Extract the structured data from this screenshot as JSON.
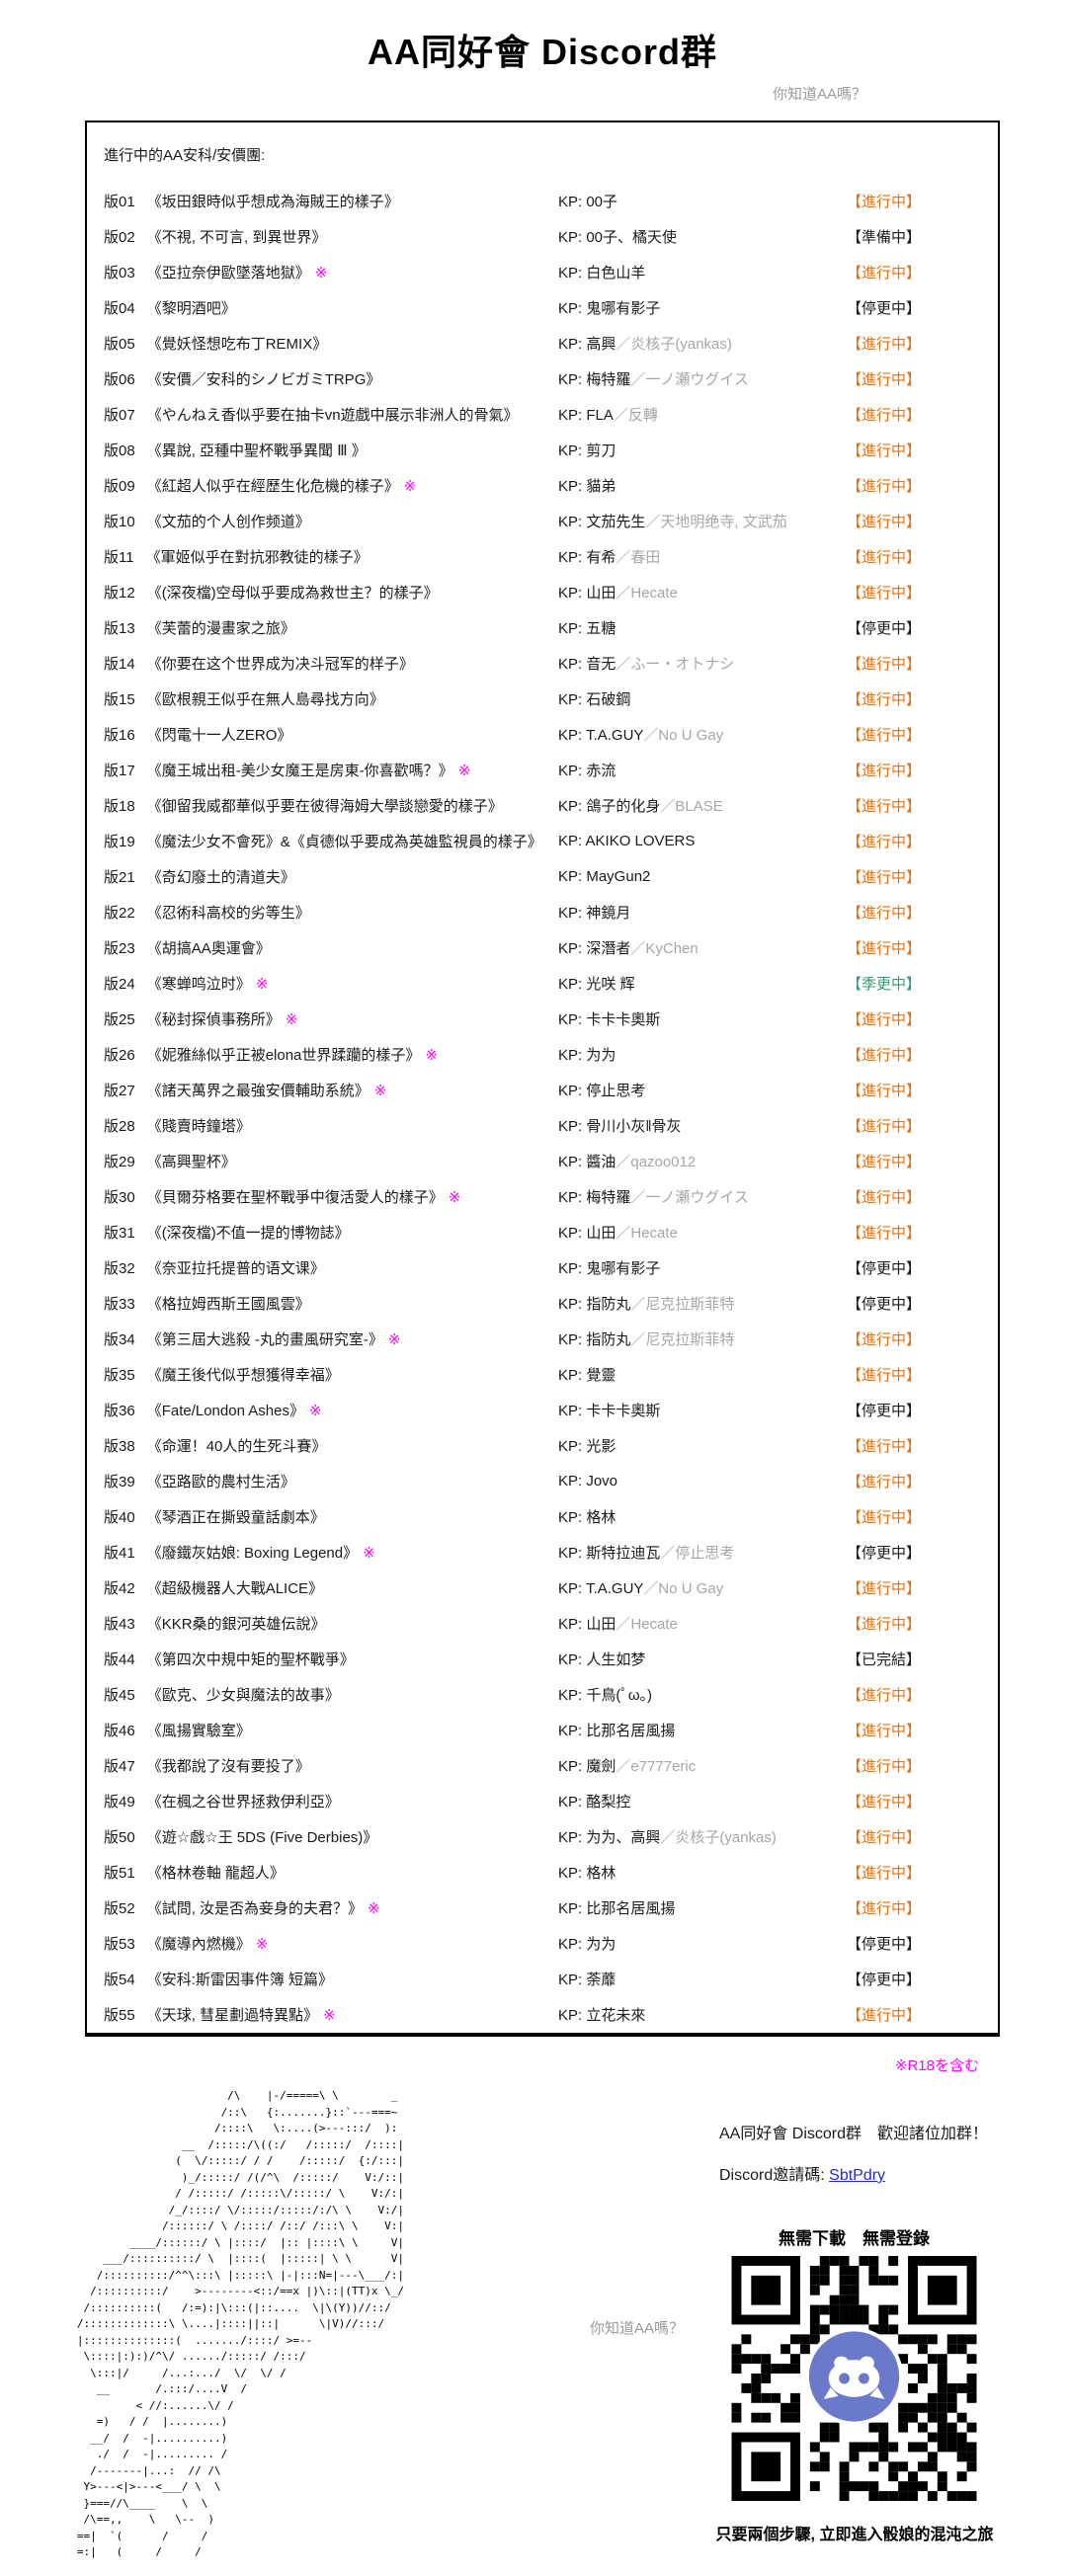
{
  "colors": {
    "active": "#e8710f",
    "seasonal": "#2f9e6e",
    "r18": "#ff00ff",
    "link": "#2525d8",
    "muted": "#9a9a9a",
    "kp_sub": "#a6a6a6",
    "discord": "#6a79ca"
  },
  "header": {
    "title": "AA同好會 Discord群",
    "tagline": "你知道AA嗎？"
  },
  "board": {
    "heading": "進行中的AA安科/安價團:",
    "kp_prefix": "KP:",
    "kp_separator": "／",
    "r18_mark": "※",
    "rows": [
      {
        "no": "版01",
        "title": "《坂田銀時似乎想成為海賊王的樣子》",
        "r18": false,
        "kp": "00子",
        "kp_sub": "",
        "status": "【進行中】",
        "type": "active"
      },
      {
        "no": "版02",
        "title": "《不視, 不可言, 到異世界》",
        "r18": false,
        "kp": "00子、橘天使",
        "kp_sub": "",
        "status": "【準備中】",
        "type": "prep"
      },
      {
        "no": "版03",
        "title": "《亞拉奈伊歐墜落地獄》",
        "r18": true,
        "kp": "白色山羊",
        "kp_sub": "",
        "status": "【進行中】",
        "type": "active"
      },
      {
        "no": "版04",
        "title": "《黎明酒吧》",
        "r18": false,
        "kp": "鬼哪有影子",
        "kp_sub": "",
        "status": "【停更中】",
        "type": "paused"
      },
      {
        "no": "版05",
        "title": "《覺妖怪想吃布丁REMIX》",
        "r18": false,
        "kp": "高興",
        "kp_sub": "炎核子(yankas)",
        "status": "【進行中】",
        "type": "active"
      },
      {
        "no": "版06",
        "title": "《安價／安科的シノビガミTRPG》",
        "r18": false,
        "kp": "梅特羅",
        "kp_sub": "一ノ瀬ウグイス",
        "status": "【進行中】",
        "type": "active"
      },
      {
        "no": "版07",
        "title": "《やんねえ香似乎要在抽卡vn遊戲中展示非洲人的骨氣》",
        "r18": false,
        "kp": "FLA",
        "kp_sub": "反轉",
        "status": "【進行中】",
        "type": "active"
      },
      {
        "no": "版08",
        "title": "《異說, 亞種中聖杯戰爭異聞 Ⅲ 》",
        "r18": false,
        "kp": "剪刀",
        "kp_sub": "",
        "status": "【進行中】",
        "type": "active"
      },
      {
        "no": "版09",
        "title": "《紅超人似乎在經歷生化危機的樣子》",
        "r18": true,
        "kp": "貓弟",
        "kp_sub": "",
        "status": "【進行中】",
        "type": "active"
      },
      {
        "no": "版10",
        "title": "《文茄的个人创作频道》",
        "r18": false,
        "kp": "文茄先生",
        "kp_sub": "天地明绝寺, 文武茄",
        "status": "【進行中】",
        "type": "active"
      },
      {
        "no": "版11",
        "title": "《軍姬似乎在對抗邪教徒的樣子》",
        "r18": false,
        "kp": "有希",
        "kp_sub": "春田",
        "status": "【進行中】",
        "type": "active"
      },
      {
        "no": "版12",
        "title": "《(深夜檔)空母似乎要成為救世主？的樣子》",
        "r18": false,
        "kp": "山田",
        "kp_sub": "Hecate",
        "status": "【進行中】",
        "type": "active"
      },
      {
        "no": "版13",
        "title": "《芙蕾的漫畫家之旅》",
        "r18": false,
        "kp": "五糖",
        "kp_sub": "",
        "status": "【停更中】",
        "type": "paused"
      },
      {
        "no": "版14",
        "title": "《你要在这个世界成为决斗冠军的样子》",
        "r18": false,
        "kp": "音无",
        "kp_sub": "ふー・オトナシ",
        "status": "【進行中】",
        "type": "active"
      },
      {
        "no": "版15",
        "title": "《歐根親王似乎在無人島尋找方向》",
        "r18": false,
        "kp": "石破鋼",
        "kp_sub": "",
        "status": "【進行中】",
        "type": "active"
      },
      {
        "no": "版16",
        "title": "《閃電十一人ZERO》",
        "r18": false,
        "kp": "T.A.GUY",
        "kp_sub": "No U Gay",
        "status": "【進行中】",
        "type": "active"
      },
      {
        "no": "版17",
        "title": "《魔王城出租-美少女魔王是房東-你喜歡嗎？》",
        "r18": true,
        "kp": "赤流",
        "kp_sub": "",
        "status": "【進行中】",
        "type": "active"
      },
      {
        "no": "版18",
        "title": "《御留我威都華似乎要在彼得海姆大學談戀愛的樣子》",
        "r18": false,
        "kp": "鴿子的化身",
        "kp_sub": "BLASE",
        "status": "【進行中】",
        "type": "active"
      },
      {
        "no": "版19",
        "title": "《魔法少女不會死》&《貞德似乎要成為英雄監視員的樣子》",
        "r18": false,
        "kp": "AKIKO LOVERS",
        "kp_sub": "",
        "status": "【進行中】",
        "type": "active"
      },
      {
        "no": "版21",
        "title": "《奇幻廢土的清道夫》",
        "r18": false,
        "kp": "MayGun2",
        "kp_sub": "",
        "status": "【進行中】",
        "type": "active"
      },
      {
        "no": "版22",
        "title": "《忍術科高校的劣等生》",
        "r18": false,
        "kp": "神鏡月",
        "kp_sub": "",
        "status": "【進行中】",
        "type": "active"
      },
      {
        "no": "版23",
        "title": "《胡搞AA奧運會》",
        "r18": false,
        "kp": "深潛者",
        "kp_sub": "KyChen",
        "status": "【進行中】",
        "type": "active"
      },
      {
        "no": "版24",
        "title": "《寒蝉鸣泣时》",
        "r18": true,
        "kp": "光咲 辉",
        "kp_sub": "",
        "status": "【季更中】",
        "type": "seasonal"
      },
      {
        "no": "版25",
        "title": "《秘封探偵事務所》",
        "r18": true,
        "kp": "卡卡卡奧斯",
        "kp_sub": "",
        "status": "【進行中】",
        "type": "active"
      },
      {
        "no": "版26",
        "title": "《妮雅絲似乎正被elona世界蹂躪的樣子》",
        "r18": true,
        "kp": "为为",
        "kp_sub": "",
        "status": "【進行中】",
        "type": "active"
      },
      {
        "no": "版27",
        "title": "《諸天萬界之最強安價輔助系統》",
        "r18": true,
        "kp": "停止思考",
        "kp_sub": "",
        "status": "【進行中】",
        "type": "active"
      },
      {
        "no": "版28",
        "title": "《賤賣時鐘塔》",
        "r18": false,
        "kp": "骨川小灰‖骨灰",
        "kp_sub": "",
        "status": "【進行中】",
        "type": "active"
      },
      {
        "no": "版29",
        "title": "《高興聖杯》",
        "r18": false,
        "kp": "醬油",
        "kp_sub": "qazoo012",
        "status": "【進行中】",
        "type": "active"
      },
      {
        "no": "版30",
        "title": "《貝爾芬格要在聖杯戰爭中復活愛人的樣子》",
        "r18": true,
        "kp": "梅特羅",
        "kp_sub": "一ノ瀬ウグイス",
        "status": "【進行中】",
        "type": "active"
      },
      {
        "no": "版31",
        "title": "《(深夜檔)不值一提的博物誌》",
        "r18": false,
        "kp": "山田",
        "kp_sub": "Hecate",
        "status": "【進行中】",
        "type": "active"
      },
      {
        "no": "版32",
        "title": "《奈亚拉托提普的语文课》",
        "r18": false,
        "kp": "鬼哪有影子",
        "kp_sub": "",
        "status": "【停更中】",
        "type": "paused"
      },
      {
        "no": "版33",
        "title": "《格拉姆西斯王國風雲》",
        "r18": false,
        "kp": "指防丸",
        "kp_sub": "尼克拉斯菲特",
        "status": "【停更中】",
        "type": "paused"
      },
      {
        "no": "版34",
        "title": "《第三屆大逃殺 -丸的畫風研究室-》",
        "r18": true,
        "kp": "指防丸",
        "kp_sub": "尼克拉斯菲特",
        "status": "【進行中】",
        "type": "active"
      },
      {
        "no": "版35",
        "title": "《魔王後代似乎想獲得幸福》",
        "r18": false,
        "kp": "覺靈",
        "kp_sub": "",
        "status": "【進行中】",
        "type": "active"
      },
      {
        "no": "版36",
        "title": "《Fate/London Ashes》",
        "r18": true,
        "kp": "卡卡卡奧斯",
        "kp_sub": "",
        "status": "【停更中】",
        "type": "paused"
      },
      {
        "no": "版38",
        "title": "《命運！40人的生死斗賽》",
        "r18": false,
        "kp": "光影",
        "kp_sub": "",
        "status": "【進行中】",
        "type": "active"
      },
      {
        "no": "版39",
        "title": "《亞路歐的農村生活》",
        "r18": false,
        "kp": "Jovo",
        "kp_sub": "",
        "status": "【進行中】",
        "type": "active"
      },
      {
        "no": "版40",
        "title": "《琴酒正在撕毀童話劇本》",
        "r18": false,
        "kp": "格林",
        "kp_sub": "",
        "status": "【進行中】",
        "type": "active"
      },
      {
        "no": "版41",
        "title": "《廢鐵灰姑娘: Boxing Legend》",
        "r18": true,
        "kp": "斯特拉迪瓦",
        "kp_sub": "停止思考",
        "status": "【停更中】",
        "type": "paused"
      },
      {
        "no": "版42",
        "title": "《超級機器人大戰ALICE》",
        "r18": false,
        "kp": "T.A.GUY",
        "kp_sub": "No U Gay",
        "status": "【進行中】",
        "type": "active"
      },
      {
        "no": "版43",
        "title": "《KKR桑的銀河英雄伝說》",
        "r18": false,
        "kp": "山田",
        "kp_sub": "Hecate",
        "status": "【進行中】",
        "type": "active"
      },
      {
        "no": "版44",
        "title": "《第四次中規中矩的聖杯戰爭》",
        "r18": false,
        "kp": "人生如梦",
        "kp_sub": "",
        "status": "【已完結】",
        "type": "done"
      },
      {
        "no": "版45",
        "title": "《歐克、少女與魔法的故事》",
        "r18": false,
        "kp": "千鳥(ﾟω。)",
        "kp_sub": "",
        "status": "【進行中】",
        "type": "active"
      },
      {
        "no": "版46",
        "title": "《風揚實驗室》",
        "r18": false,
        "kp": "比那名居風揚",
        "kp_sub": "",
        "status": "【進行中】",
        "type": "active"
      },
      {
        "no": "版47",
        "title": "《我都說了沒有要投了》",
        "r18": false,
        "kp": "魔劍",
        "kp_sub": "e7777eric",
        "status": "【進行中】",
        "type": "active"
      },
      {
        "no": "版49",
        "title": "《在楓之谷世界拯救伊利亞》",
        "r18": false,
        "kp": "酪梨控",
        "kp_sub": "",
        "status": "【進行中】",
        "type": "active"
      },
      {
        "no": "版50",
        "title": "《遊☆戲☆王 5DS (Five Derbies)》",
        "r18": false,
        "kp": "为为、高興",
        "kp_sub": "炎核子(yankas)",
        "status": "【進行中】",
        "type": "active"
      },
      {
        "no": "版51",
        "title": "《格林卷軸 龍超人》",
        "r18": false,
        "kp": "格林",
        "kp_sub": "",
        "status": "【進行中】",
        "type": "active"
      },
      {
        "no": "版52",
        "title": "《試問, 汝是否為妾身的夫君？》",
        "r18": true,
        "kp": "比那名居風揚",
        "kp_sub": "",
        "status": "【進行中】",
        "type": "active"
      },
      {
        "no": "版53",
        "title": "《魔導內燃機》",
        "r18": true,
        "kp": "为为",
        "kp_sub": "",
        "status": "【停更中】",
        "type": "paused"
      },
      {
        "no": "版54",
        "title": "《安科:斯雷因事件簿 短篇》",
        "r18": false,
        "kp": "荼蘼",
        "kp_sub": "",
        "status": "【停更中】",
        "type": "paused"
      },
      {
        "no": "版55",
        "title": "《天球, 彗星劃過特異點》",
        "r18": true,
        "kp": "立花未來",
        "kp_sub": "",
        "status": "【進行中】",
        "type": "active"
      }
    ]
  },
  "footer": {
    "r18_note": "※R18を含む",
    "tagline": "你知道AA嗎？",
    "welcome": "AA同好會 Discord群　歡迎諸位加群！",
    "invite_label": "Discord邀請碼: ",
    "invite_code": "SbtPdry",
    "qr_headline": "無需下載　無需登錄",
    "qr_caption": "只要兩個步驟, 立即進入骰娘的混沌之旅",
    "ascii_art": [
      "                          /\\    |-/=====\\ \\        _",
      "                         /::\\   {:.......}::`---===~",
      "                        /::::\\   \\:....(>---:::/  ):",
      "                   __  /:::::/\\((:/   /:::::/  /::::|",
      "                  (  \\/:::::/ / /    /:::::/  {:/:::|",
      "                   )_/:::::/ /(/^\\  /:::::/    V:/::|",
      "                  / /:::::/ /:::::\\/:::::/ \\    V:/:|",
      "                 /_/::::/ \\/:::::/:::::/:/\\ \\    V:/|",
      "                /::::::/ \\ /::::/ /::/ /:::\\ \\    V:|",
      "           ____/::::::/ \\ |::::/  |:: |::::\\ \\     V|",
      "       ___/::::::::::/ \\  |::::(  |:::::| \\ \\      V|",
      "      /::::::::::/^^\\:::\\ |:::::\\ |-|:::N=|---\\___/:|",
      "     /::::::::::/    >--------<::/==x |)\\::|(TT)x \\_/",
      "    /::::::::::(   /:=):|\\:::(|::....  \\|\\(Y))//::/",
      "   /:::::::::::::\\ \\....|::::||::|      \\|V)//:::/",
      "   |::::::::::::::(  ......./::::/ >=--",
      "    \\::::|:):)/^\\/ ....../:::::/ /:::/",
      "     \\:::|/     /...:.../  \\/  \\/ /",
      "      __       /.:::/....V  /",
      "            < //:......\\/ /",
      "      =)   / /  |........)",
      "     __/  /  -|..........)",
      "      ./  /  -|......... /",
      "     /-------|...:  // /\\",
      "    Y>---<|>---<___/ \\  \\",
      "    }===//\\____    \\  \\",
      "    /\\==,,    \\   \\--  )",
      "   ==|  `(      /     /",
      "   =:|   (     /     /"
    ]
  }
}
